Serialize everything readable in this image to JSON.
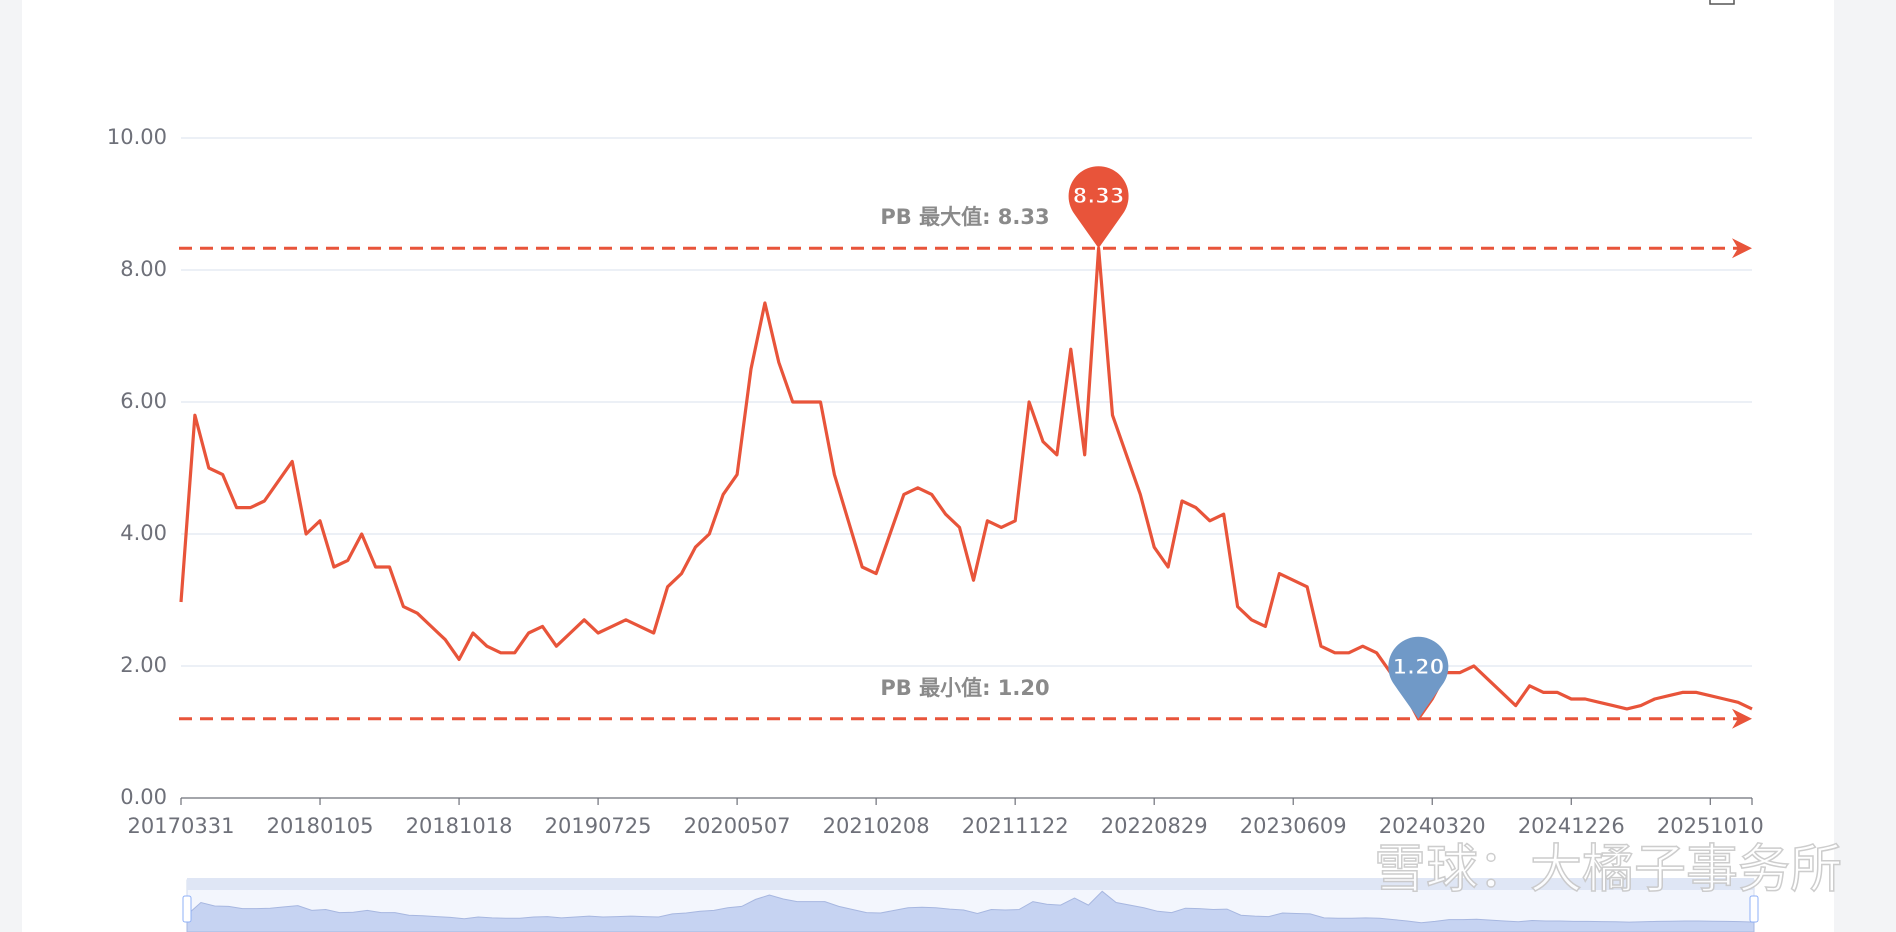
{
  "chart_data": {
    "type": "line",
    "categories": [
      "20170331",
      null,
      null,
      null,
      null,
      null,
      null,
      null,
      null,
      null,
      "20180105",
      null,
      null,
      null,
      null,
      null,
      null,
      null,
      null,
      null,
      "20181018",
      null,
      null,
      null,
      null,
      null,
      null,
      null,
      null,
      null,
      "20190725",
      null,
      null,
      null,
      null,
      null,
      null,
      null,
      null,
      null,
      "20200507",
      null,
      null,
      null,
      null,
      null,
      null,
      null,
      null,
      null,
      "20210208",
      null,
      null,
      null,
      null,
      null,
      null,
      null,
      null,
      null,
      "20211122",
      null,
      null,
      null,
      null,
      null,
      null,
      null,
      null,
      null,
      "20220829",
      null,
      null,
      null,
      null,
      null,
      null,
      null,
      null,
      null,
      "20230609",
      null,
      null,
      null,
      null,
      null,
      null,
      null,
      null,
      null,
      "20240320",
      null,
      null,
      null,
      null,
      null,
      null,
      null,
      null,
      null,
      "20241226",
      null,
      null,
      null,
      null,
      null,
      null,
      null,
      null,
      null,
      "20251010",
      null,
      null,
      null
    ],
    "series": [
      {
        "name": "PB",
        "color": "#e8543a",
        "values": [
          2.97,
          5.8,
          5.0,
          4.9,
          4.4,
          4.4,
          4.5,
          4.8,
          5.1,
          4.0,
          4.2,
          3.5,
          3.6,
          4.0,
          3.5,
          3.5,
          2.9,
          2.8,
          2.6,
          2.4,
          2.1,
          2.5,
          2.3,
          2.2,
          2.2,
          2.5,
          2.6,
          2.3,
          2.5,
          2.7,
          2.5,
          2.6,
          2.7,
          2.6,
          2.5,
          3.2,
          3.4,
          3.8,
          4.0,
          4.6,
          4.9,
          6.5,
          7.5,
          6.6,
          6.0,
          6.0,
          6.0,
          4.9,
          4.2,
          3.5,
          3.4,
          4.0,
          4.6,
          4.7,
          4.6,
          4.3,
          4.1,
          3.3,
          4.2,
          4.1,
          4.2,
          6.0,
          5.4,
          5.2,
          6.8,
          5.2,
          8.33,
          5.8,
          5.2,
          4.6,
          3.8,
          3.5,
          4.5,
          4.4,
          4.2,
          4.3,
          2.9,
          2.7,
          2.6,
          3.4,
          3.3,
          3.2,
          2.3,
          2.2,
          2.2,
          2.3,
          2.2,
          1.9,
          1.6,
          1.2,
          1.5,
          1.9,
          1.9,
          2.0,
          1.8,
          1.6,
          1.4,
          1.7,
          1.6,
          1.6,
          1.5,
          1.5,
          1.45,
          1.4,
          1.35,
          1.4,
          1.5,
          1.55,
          1.6,
          1.6,
          1.55,
          1.5,
          1.45,
          1.35
        ]
      }
    ],
    "ylim": [
      0,
      10
    ],
    "yticks": [
      {
        "value": 0,
        "label": "0.00"
      },
      {
        "value": 2,
        "label": "2.00"
      },
      {
        "value": 4,
        "label": "4.00"
      },
      {
        "value": 6,
        "label": "6.00"
      },
      {
        "value": 8,
        "label": "8.00"
      },
      {
        "value": 10,
        "label": "10.00"
      }
    ],
    "grid": true,
    "mark_lines": {
      "values": [
        8.33,
        1.2
      ],
      "labels": [
        "PB 最大值: 8.33",
        "PB 最小值: 1.20"
      ]
    },
    "mark_points": {
      "values": [
        8.33,
        1.2
      ],
      "value_labels": [
        "8.33",
        "1.20"
      ],
      "colors": [
        "#e8543a",
        "#7099c7"
      ]
    },
    "watermark": "雪球：大橘子事务所"
  }
}
